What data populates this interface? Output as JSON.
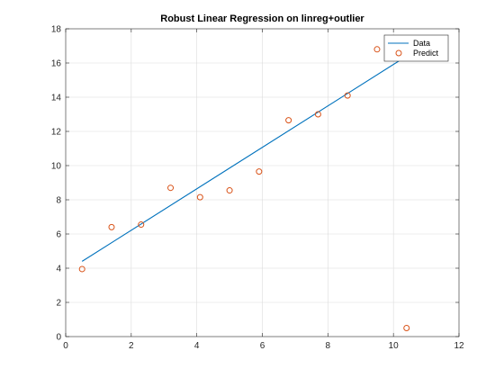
{
  "chart_data": {
    "type": "scatter",
    "title": "Robust Linear Regression on linreg+outlier",
    "xlabel": "",
    "ylabel": "",
    "xlim": [
      0,
      12
    ],
    "ylim": [
      0,
      18
    ],
    "xticks": [
      0,
      2,
      4,
      6,
      8,
      10,
      12
    ],
    "yticks": [
      0,
      2,
      4,
      6,
      8,
      10,
      12,
      14,
      16,
      18
    ],
    "grid": true,
    "legend_position": "top-right",
    "series": [
      {
        "name": "Data",
        "kind": "line",
        "color": "#0072BD",
        "x": [
          0.5,
          10.4
        ],
        "y": [
          4.4,
          16.4
        ]
      },
      {
        "name": "Predict",
        "kind": "scatter",
        "marker": "open-circle",
        "color": "#D95319",
        "x": [
          0.5,
          1.4,
          2.3,
          3.2,
          4.1,
          5.0,
          5.9,
          6.8,
          7.7,
          8.6,
          9.5,
          10.4
        ],
        "y": [
          3.95,
          6.4,
          6.55,
          8.7,
          8.15,
          8.55,
          9.65,
          12.65,
          13.0,
          14.1,
          16.8,
          0.5
        ]
      }
    ]
  }
}
